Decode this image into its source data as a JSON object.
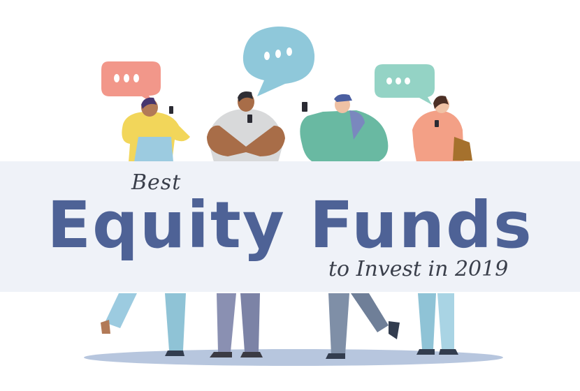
{
  "banner": {
    "pre_title": "Best",
    "title": "Equity Funds",
    "subtitle": "to Invest in 2019"
  },
  "colors": {
    "banner_background": "#eff2f8",
    "title": "#4e6296",
    "script_text": "#3a3f4b",
    "bubble_coral": "#f2978a",
    "bubble_blue": "#8fc8da",
    "bubble_mint": "#94d3c5"
  },
  "illustration": {
    "figures": [
      "woman-yellow-top",
      "man-grey-shirt",
      "man-green-hoodie",
      "woman-coral-top"
    ],
    "icons": [
      "speech-bubble-icon",
      "smartphone-icon"
    ]
  }
}
